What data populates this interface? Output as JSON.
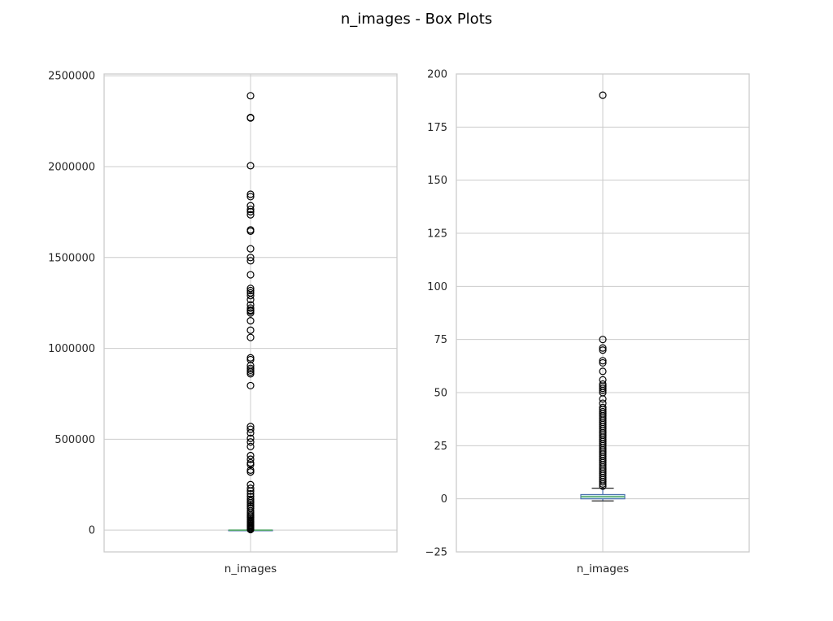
{
  "figure": {
    "title": "n_images - Box Plots"
  },
  "chart_data": [
    {
      "type": "box",
      "title": "",
      "xlabel": "",
      "ylabel": "",
      "categories": [
        "n_images"
      ],
      "ylim": [
        -120000,
        2510000
      ],
      "yticks": [
        0,
        500000,
        1000000,
        1500000,
        2000000,
        2500000
      ],
      "grid": true,
      "box": {
        "q1": 0,
        "median": 2,
        "q3": 5,
        "whisker_low": 0,
        "whisker_high": 12
      },
      "outliers": [
        2390000,
        2270000,
        2268000,
        2005000,
        1848000,
        1835000,
        1785000,
        1765000,
        1752000,
        1735000,
        1652000,
        1645000,
        1548000,
        1500000,
        1482000,
        1405000,
        1330000,
        1318000,
        1305000,
        1290000,
        1268000,
        1240000,
        1222000,
        1210000,
        1205000,
        1195000,
        1152000,
        1100000,
        1060000,
        948000,
        938000,
        905000,
        890000,
        880000,
        870000,
        860000,
        795000,
        570000,
        555000,
        535000,
        505000,
        485000,
        460000,
        410000,
        390000,
        370000,
        360000,
        330000,
        320000,
        250000,
        230000,
        215000,
        200000,
        185000,
        170000,
        160000,
        150000,
        140000,
        130000,
        120000,
        105000,
        95000,
        85000,
        78000,
        70000,
        62000,
        55000,
        48000,
        42000,
        36000,
        30000,
        25000,
        20000,
        15000,
        10000,
        6000,
        3000
      ]
    },
    {
      "type": "box",
      "title": "",
      "xlabel": "",
      "ylabel": "",
      "categories": [
        "n_images"
      ],
      "ylim": [
        -25,
        200
      ],
      "yticks": [
        -25,
        0,
        25,
        50,
        75,
        100,
        125,
        150,
        175,
        200
      ],
      "grid": true,
      "box": {
        "q1": 0,
        "median": 1,
        "q3": 2,
        "whisker_low": -1,
        "whisker_high": 5
      },
      "outliers": [
        190,
        75,
        71,
        70,
        65,
        64,
        60,
        56,
        54,
        53,
        52,
        51,
        50,
        47,
        45,
        43,
        42,
        41,
        40,
        39,
        38,
        37,
        36,
        35,
        34,
        33,
        32,
        31,
        30,
        29,
        28,
        27,
        26,
        25,
        24,
        23,
        22,
        21,
        20,
        19,
        18,
        17,
        16,
        15,
        14,
        13,
        12,
        11,
        10,
        9,
        8,
        7,
        6
      ]
    }
  ]
}
